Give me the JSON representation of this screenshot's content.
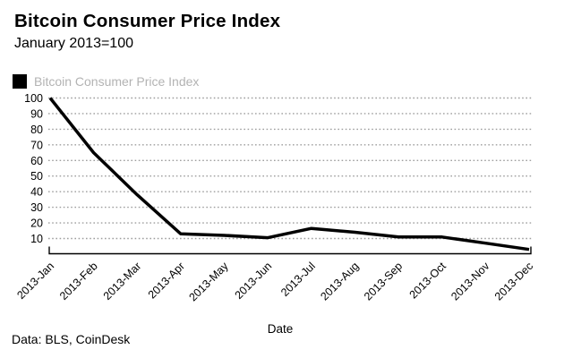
{
  "header": {
    "title": "Bitcoin Consumer Price Index",
    "subtitle": "January 2013=100"
  },
  "legend": {
    "label": "Bitcoin Consumer Price Index",
    "swatch_color": "#000000",
    "label_color": "#b3b3b3"
  },
  "chart_data": {
    "type": "line",
    "title": "Bitcoin Consumer Price Index",
    "subtitle": "January 2013=100",
    "series_name": "Bitcoin Consumer Price Index",
    "x": [
      "2013-Jan",
      "2013-Feb",
      "2013-Mar",
      "2013-Apr",
      "2013-May",
      "2013-Jun",
      "2013-Jul",
      "2013-Aug",
      "2013-Sep",
      "2013-Oct",
      "2013-Nov",
      "2013-Dec"
    ],
    "values": [
      100,
      65,
      38,
      13,
      12,
      10.5,
      16.5,
      14,
      11,
      11,
      7,
      3
    ],
    "xlabel": "Date",
    "ylabel": "",
    "yticks": [
      10,
      20,
      30,
      40,
      50,
      60,
      70,
      80,
      90,
      100
    ],
    "ylim": [
      2,
      100
    ],
    "grid": "horizontal-dotted",
    "legend_position": "top-left",
    "line_color": "#000000",
    "grid_color": "#9e9e9e",
    "tick_label_color": "#000000"
  },
  "footer": {
    "source": "Data: BLS, CoinDesk"
  }
}
